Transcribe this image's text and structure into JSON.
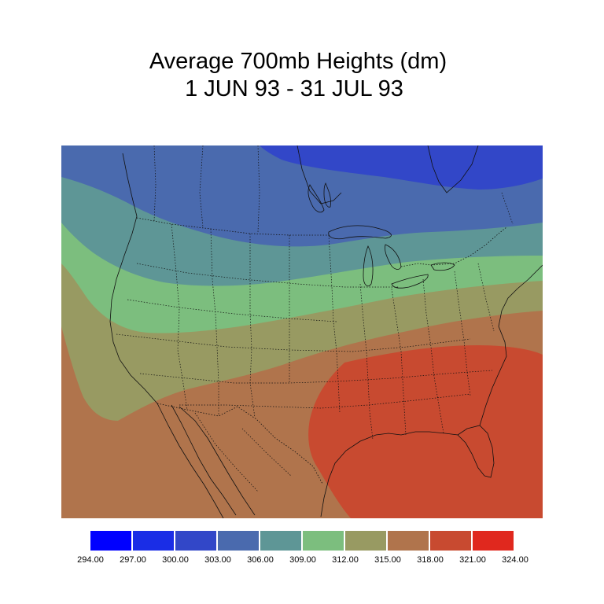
{
  "title": {
    "line1": "Average 700mb Heights (dm)",
    "line2": "1 JUN 93 - 31 JUL 93"
  },
  "map": {
    "projection": "Lambert conformal (continental US)",
    "field": "700mb geopotential height",
    "units": "dm",
    "colors": {
      "h300_303": "#3247c8",
      "h303_306": "#4a6aae",
      "h306_309": "#5e9696",
      "h309_312": "#7cbe7e",
      "h312_315": "#989a62",
      "h315_318": "#b0744c",
      "h318_321": "#c84a30",
      "boundary": "#111111"
    }
  },
  "legend": {
    "bins": [
      {
        "color": "#0000ff"
      },
      {
        "color": "#1a2de6"
      },
      {
        "color": "#3247c8"
      },
      {
        "color": "#4a6aae"
      },
      {
        "color": "#5e9696"
      },
      {
        "color": "#7cbe7e"
      },
      {
        "color": "#989a62"
      },
      {
        "color": "#b0744c"
      },
      {
        "color": "#c84a30"
      },
      {
        "color": "#e0281e"
      }
    ],
    "ticks": [
      "294.00",
      "297.00",
      "300.00",
      "303.00",
      "306.00",
      "309.00",
      "312.00",
      "315.00",
      "318.00",
      "321.00",
      "324.00"
    ]
  }
}
